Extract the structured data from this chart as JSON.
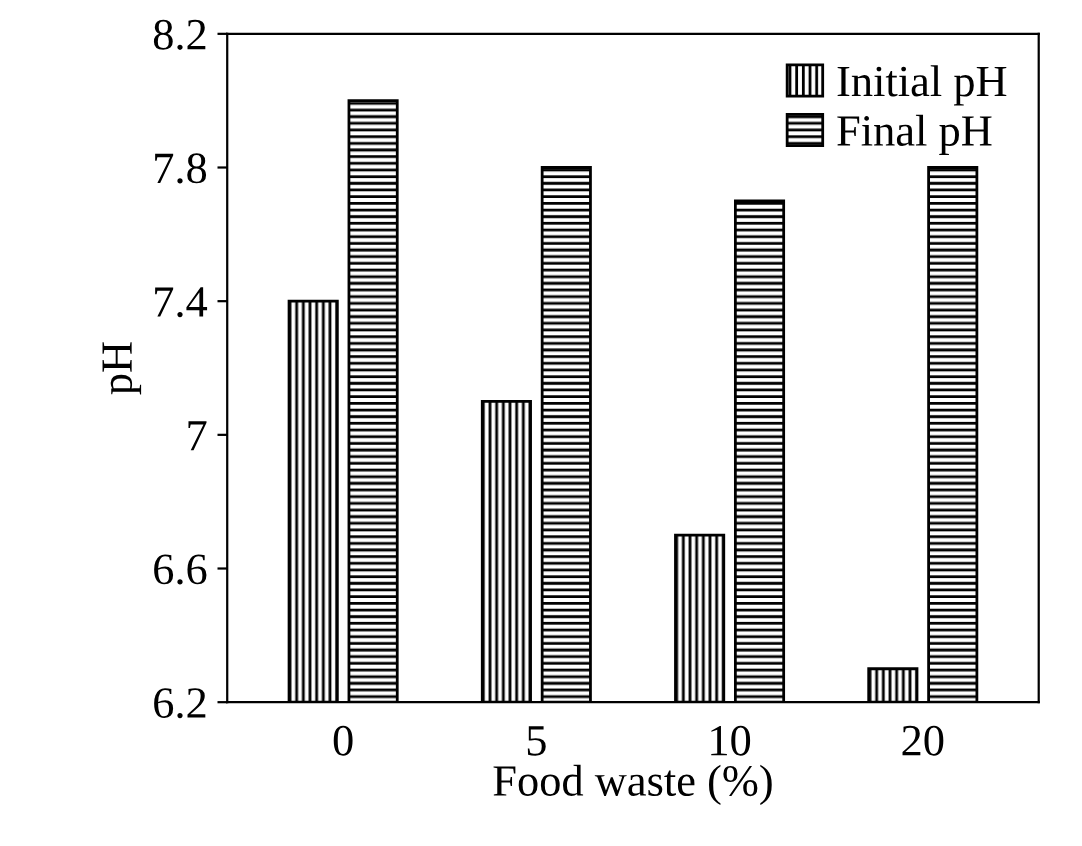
{
  "chart_data": {
    "type": "bar",
    "xlabel": "Food waste (%)",
    "ylabel": "pH",
    "categories": [
      "0",
      "5",
      "10",
      "20"
    ],
    "series": [
      {
        "name": "Initial pH",
        "color": "#000000",
        "values": [
          7.4,
          7.1,
          6.7,
          6.3
        ]
      },
      {
        "name": "Final pH",
        "color": "#000000",
        "values": [
          8.0,
          7.8,
          7.7,
          7.8
        ]
      }
    ],
    "ylim": [
      6.2,
      8.2
    ],
    "yticks": [
      6.2,
      6.6,
      7,
      7.4,
      7.8,
      8.2
    ],
    "grid": false,
    "legend": "top right"
  }
}
